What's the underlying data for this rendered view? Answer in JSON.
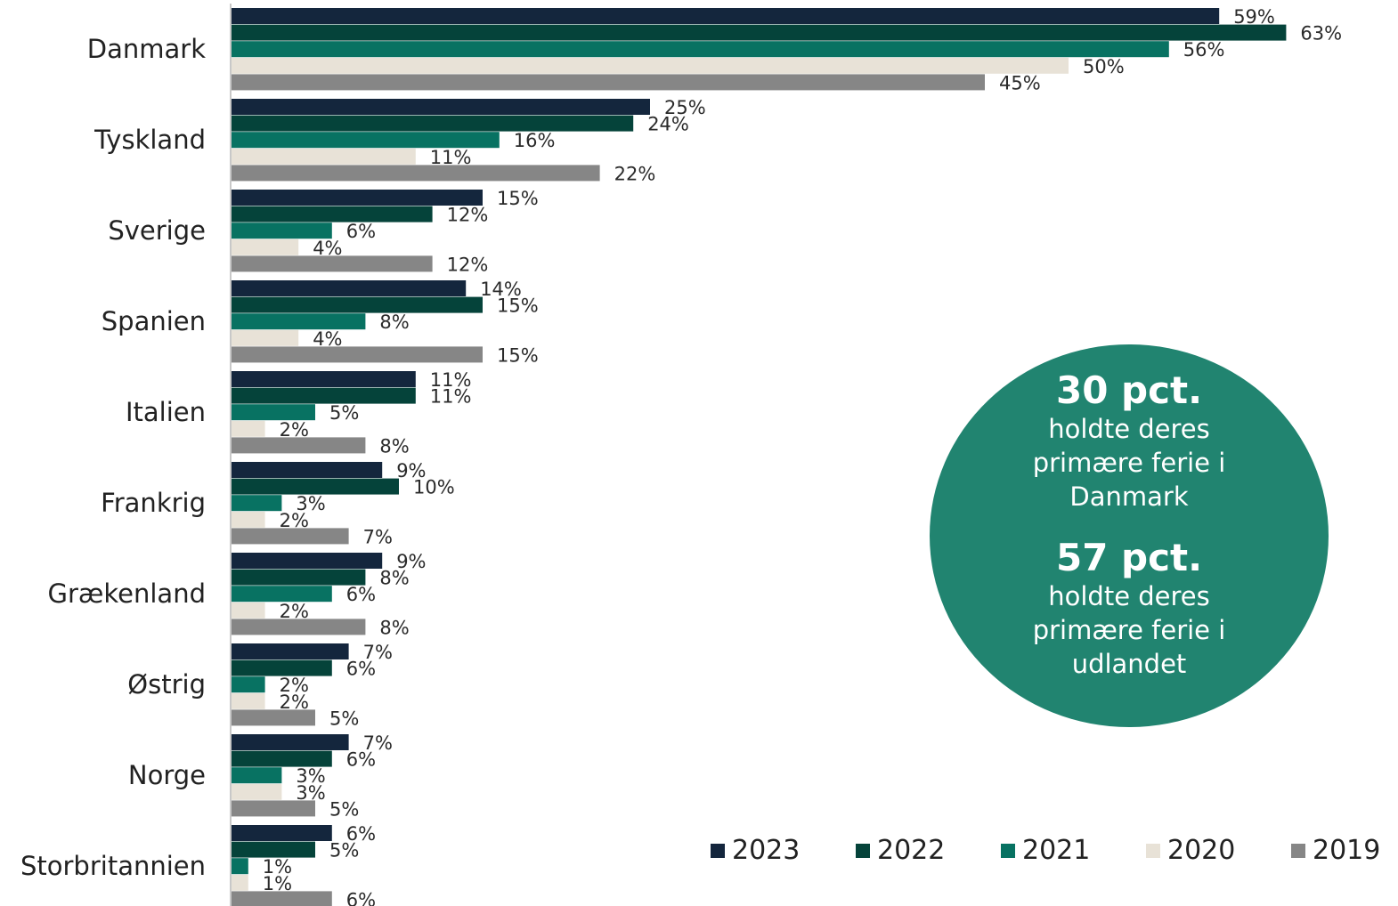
{
  "chart_data": {
    "type": "bar",
    "orientation": "horizontal",
    "categories": [
      "Danmark",
      "Tyskland",
      "Sverige",
      "Spanien",
      "Italien",
      "Frankrig",
      "Grækenland",
      "Østrig",
      "Norge",
      "Storbritannien"
    ],
    "series": [
      {
        "name": "2023",
        "color": "#14263d",
        "values": [
          59,
          25,
          15,
          14,
          11,
          9,
          9,
          7,
          7,
          6
        ]
      },
      {
        "name": "2022",
        "color": "#05433a",
        "values": [
          63,
          24,
          12,
          15,
          11,
          10,
          8,
          6,
          6,
          5
        ]
      },
      {
        "name": "2021",
        "color": "#087262",
        "values": [
          56,
          16,
          6,
          8,
          5,
          3,
          6,
          2,
          3,
          1
        ]
      },
      {
        "name": "2020",
        "color": "#e8e2d7",
        "values": [
          50,
          11,
          4,
          4,
          2,
          2,
          2,
          2,
          3,
          1
        ]
      },
      {
        "name": "2019",
        "color": "#868686",
        "values": [
          45,
          22,
          12,
          15,
          8,
          7,
          8,
          5,
          5,
          6
        ]
      }
    ],
    "value_suffix": "%",
    "xlim": [
      0,
      63
    ],
    "grid": false,
    "legend_position": "bottom-right"
  },
  "callout": {
    "stat1_value": "30 pct.",
    "stat1_text": "holdte deres primære ferie i Danmark",
    "stat2_value": "57 pct.",
    "stat2_text": "holdte deres primære ferie i udlandet",
    "color": "#218470"
  }
}
